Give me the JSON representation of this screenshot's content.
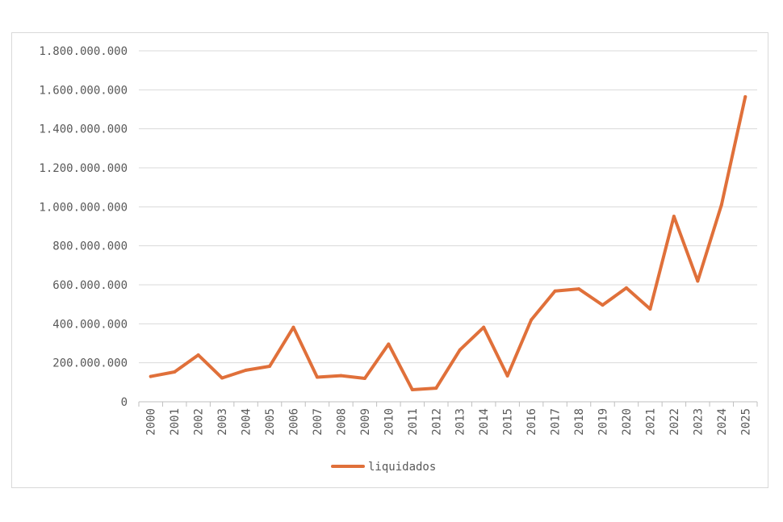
{
  "chart_data": {
    "type": "line",
    "title": "",
    "xlabel": "",
    "ylabel": "",
    "ylim": [
      0,
      1800000000
    ],
    "y_ticks": [
      {
        "value": 0,
        "label": "0"
      },
      {
        "value": 200000000,
        "label": "200.000.000"
      },
      {
        "value": 400000000,
        "label": "400.000.000"
      },
      {
        "value": 600000000,
        "label": "600.000.000"
      },
      {
        "value": 800000000,
        "label": "800.000.000"
      },
      {
        "value": 1000000000,
        "label": "1.000.000.000"
      },
      {
        "value": 1200000000,
        "label": "1.200.000.000"
      },
      {
        "value": 1400000000,
        "label": "1.400.000.000"
      },
      {
        "value": 1600000000,
        "label": "1.600.000.000"
      },
      {
        "value": 1800000000,
        "label": "1.800.000.000"
      }
    ],
    "grid": true,
    "legend_position": "bottom",
    "categories": [
      "2000",
      "2001",
      "2002",
      "2003",
      "2004",
      "2005",
      "2006",
      "2007",
      "2008",
      "2009",
      "2010",
      "2011",
      "2012",
      "2013",
      "2014",
      "2015",
      "2016",
      "2017",
      "2018",
      "2019",
      "2020",
      "2021",
      "2022",
      "2023",
      "2024",
      "2025"
    ],
    "series": [
      {
        "name": "liquidados",
        "color": "#E0703A",
        "values": [
          130000000,
          153000000,
          240000000,
          122000000,
          162000000,
          182000000,
          382000000,
          126000000,
          134000000,
          120000000,
          296000000,
          62000000,
          70000000,
          266000000,
          382000000,
          133000000,
          420000000,
          568000000,
          579000000,
          496000000,
          584000000,
          476000000,
          951000000,
          619000000,
          1010000000,
          1564000000
        ]
      }
    ]
  },
  "colors": {
    "grid": "#d9d9d9",
    "axis": "#bfbfbf",
    "text": "#595959"
  }
}
